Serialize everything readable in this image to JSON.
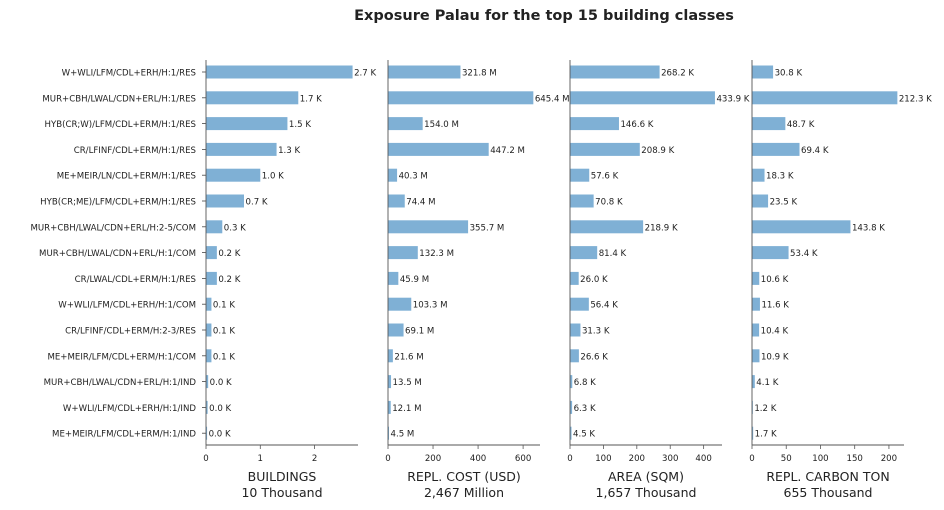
{
  "title": "Exposure Palau for the top 15 building classes",
  "bar_color": "#7fb0d5",
  "chart_data": {
    "type": "bar",
    "orientation": "horizontal",
    "title": "Exposure Palau for the top 15 building classes",
    "categories": [
      "W+WLI/LFM/CDL+ERH/H:1/RES",
      "MUR+CBH/LWAL/CDN+ERL/H:1/RES",
      "HYB(CR;W)/LFM/CDL+ERM/H:1/RES",
      "CR/LFINF/CDL+ERM/H:1/RES",
      "ME+MEIR/LN/CDL+ERM/H:1/RES",
      "HYB(CR;ME)/LFM/CDL+ERM/H:1/RES",
      "MUR+CBH/LWAL/CDN+ERL/H:2-5/COM",
      "MUR+CBH/LWAL/CDN+ERL/H:1/COM",
      "CR/LWAL/CDL+ERM/H:1/RES",
      "W+WLI/LFM/CDL+ERH/H:1/COM",
      "CR/LFINF/CDL+ERM/H:2-3/RES",
      "ME+MEIR/LFM/CDL+ERM/H:1/COM",
      "MUR+CBH/LWAL/CDN+ERL/H:1/IND",
      "W+WLI/LFM/CDL+ERH/H:1/IND",
      "ME+MEIR/LFM/CDL+ERM/H:1/IND"
    ],
    "panels": [
      {
        "xlabel": "BUILDINGS",
        "total": "10 Thousand",
        "xlim": [
          0,
          2.8
        ],
        "ticks": [
          0,
          1,
          2
        ],
        "values": [
          2.7,
          1.7,
          1.5,
          1.3,
          1.0,
          0.7,
          0.3,
          0.2,
          0.2,
          0.1,
          0.1,
          0.1,
          0.04,
          0.03,
          0.02
        ],
        "labels": [
          "2.7 K",
          "1.7 K",
          "1.5 K",
          "1.3 K",
          "1.0 K",
          "0.7 K",
          "0.3 K",
          "0.2 K",
          "0.2 K",
          "0.1 K",
          "0.1 K",
          "0.1 K",
          "0.0 K",
          "0.0 K",
          "0.0 K"
        ]
      },
      {
        "xlabel": "REPL. COST (USD)",
        "total": "2,467 Million",
        "xlim": [
          0,
          675
        ],
        "ticks": [
          0,
          200,
          400,
          600
        ],
        "values": [
          321.8,
          645.4,
          154.0,
          447.2,
          40.3,
          74.4,
          355.7,
          132.3,
          45.9,
          103.3,
          69.1,
          21.6,
          13.5,
          12.1,
          4.5
        ],
        "labels": [
          "321.8 M",
          "645.4 M",
          "154.0 M",
          "447.2 M",
          "40.3 M",
          "74.4 M",
          "355.7 M",
          "132.3 M",
          "45.9 M",
          "103.3 M",
          "69.1 M",
          "21.6 M",
          "13.5 M",
          "12.1 M",
          "4.5 M"
        ]
      },
      {
        "xlabel": "AREA (SQM)",
        "total": "1,657 Thousand",
        "xlim": [
          0,
          455
        ],
        "ticks": [
          0,
          100,
          200,
          300,
          400
        ],
        "values": [
          268.2,
          433.9,
          146.6,
          208.9,
          57.6,
          70.8,
          218.9,
          81.4,
          26.0,
          56.4,
          31.3,
          26.6,
          6.8,
          6.3,
          4.5
        ],
        "labels": [
          "268.2 K",
          "433.9 K",
          "146.6 K",
          "208.9 K",
          "57.6 K",
          "70.8 K",
          "218.9 K",
          "81.4 K",
          "26.0 K",
          "56.4 K",
          "31.3 K",
          "26.6 K",
          "6.8 K",
          "6.3 K",
          "4.5 K"
        ]
      },
      {
        "xlabel": "REPL. CARBON TON",
        "total": "655 Thousand",
        "xlim": [
          0,
          222
        ],
        "ticks": [
          0,
          50,
          100,
          150,
          200
        ],
        "values": [
          30.8,
          212.3,
          48.7,
          69.4,
          18.3,
          23.5,
          143.8,
          53.4,
          10.6,
          11.6,
          10.4,
          10.9,
          4.1,
          1.2,
          1.7
        ],
        "labels": [
          "30.8 K",
          "212.3 K",
          "48.7 K",
          "69.4 K",
          "18.3 K",
          "23.5 K",
          "143.8 K",
          "53.4 K",
          "10.6 K",
          "11.6 K",
          "10.4 K",
          "10.9 K",
          "4.1 K",
          "1.2 K",
          "1.7 K"
        ]
      }
    ]
  }
}
